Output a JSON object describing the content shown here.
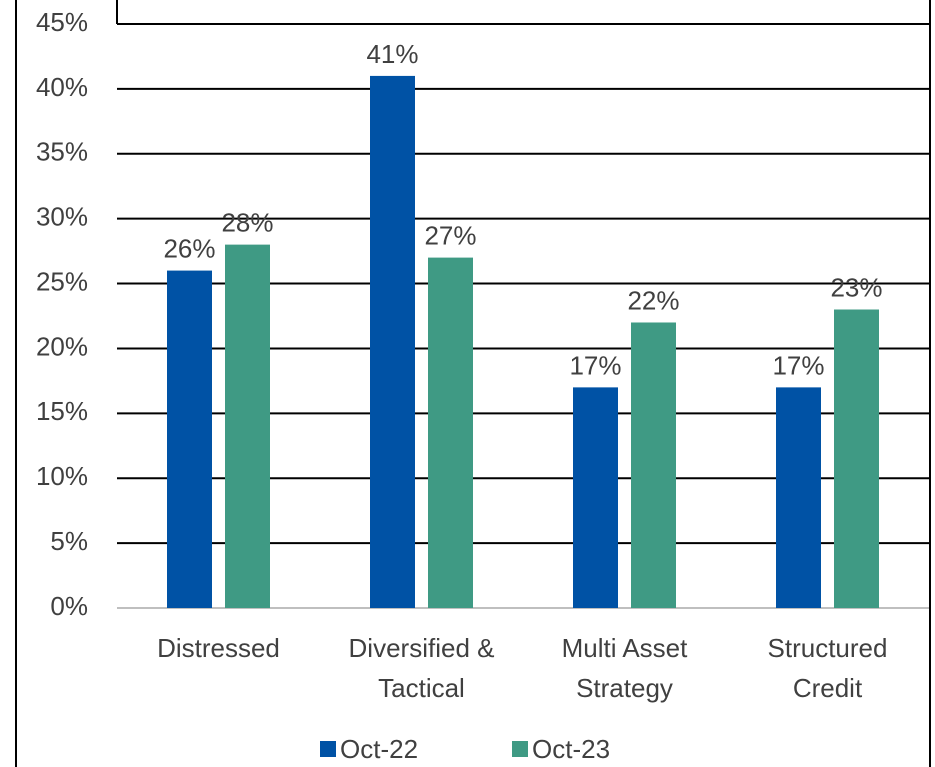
{
  "chart_data": {
    "type": "bar",
    "categories": [
      "Distressed",
      "Diversified & Tactical",
      "Multi Asset Strategy",
      "Structured Credit"
    ],
    "series": [
      {
        "name": "Oct-22",
        "color": "#0052a5",
        "values": [
          26,
          41,
          17,
          17
        ],
        "value_labels": [
          "26%",
          "41%",
          "17%",
          "17%"
        ]
      },
      {
        "name": "Oct-23",
        "color": "#3f9a84",
        "values": [
          28,
          27,
          22,
          23
        ],
        "value_labels": [
          "28%",
          "27%",
          "22%",
          "23%"
        ]
      }
    ],
    "ylim": [
      0,
      45
    ],
    "yticks": [
      {
        "value": 0,
        "label": "0%"
      },
      {
        "value": 5,
        "label": "5%"
      },
      {
        "value": 10,
        "label": "10%"
      },
      {
        "value": 15,
        "label": "15%"
      },
      {
        "value": 20,
        "label": "20%"
      },
      {
        "value": 25,
        "label": "25%"
      },
      {
        "value": 30,
        "label": "30%"
      },
      {
        "value": 35,
        "label": "35%"
      },
      {
        "value": 40,
        "label": "40%"
      },
      {
        "value": 45,
        "label": "45%"
      }
    ],
    "grid": true,
    "legend": "bottom"
  }
}
